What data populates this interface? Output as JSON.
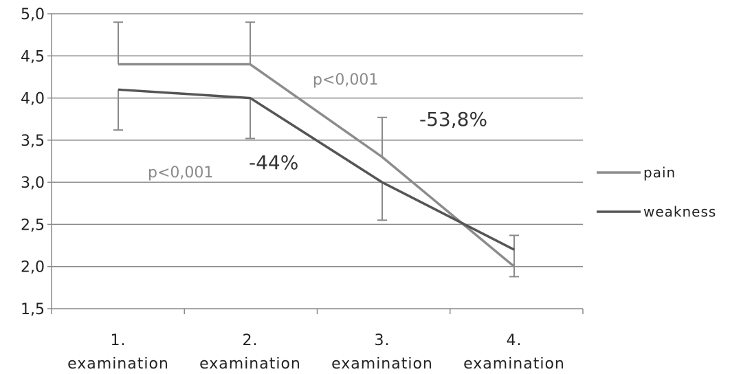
{
  "chart_data": {
    "type": "line",
    "categories": [
      [
        "1.",
        "examination"
      ],
      [
        "2.",
        "examination"
      ],
      [
        "3.",
        "examination"
      ],
      [
        "4.",
        "examination"
      ]
    ],
    "ylim": [
      1.5,
      5.0
    ],
    "yticks": [
      "1,5",
      "2,0",
      "2,5",
      "3,0",
      "3,5",
      "4,0",
      "4,5",
      "5,0"
    ],
    "ytick_values": [
      1.5,
      2.0,
      2.5,
      3.0,
      3.5,
      4.0,
      4.5,
      5.0
    ],
    "grid": true,
    "legend_position": "right",
    "series": [
      {
        "name": "pain",
        "color": "#8c8c8c",
        "values": [
          4.4,
          4.4,
          3.3,
          2.0
        ],
        "error_upper": [
          4.9,
          4.9,
          3.77,
          2.37
        ]
      },
      {
        "name": "weakness",
        "color": "#555555",
        "values": [
          4.1,
          4.0,
          3.0,
          2.2
        ],
        "error_lower": [
          3.62,
          3.52,
          2.55,
          1.88
        ]
      }
    ],
    "annotations": [
      {
        "text": "p<0,001",
        "style": "small"
      },
      {
        "text": "-53,8%",
        "style": "large"
      },
      {
        "text": "p<0,001",
        "style": "small"
      },
      {
        "text": "-44%",
        "style": "large"
      }
    ]
  }
}
